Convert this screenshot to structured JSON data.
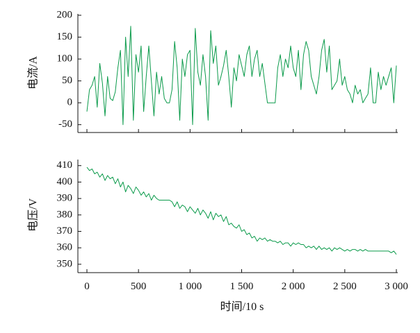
{
  "chart_data": [
    {
      "type": "line",
      "ylabel": "电流/A",
      "xlim": [
        0,
        3000
      ],
      "ylim": [
        -60,
        200
      ],
      "yticks": [
        -50,
        0,
        50,
        100,
        150,
        200
      ],
      "xticks": [
        0,
        500,
        1000,
        1500,
        2000,
        2500,
        3000
      ],
      "grid": false,
      "series": [
        {
          "color": "#0a9a4a",
          "x": [
            0,
            25,
            50,
            75,
            100,
            125,
            150,
            175,
            200,
            225,
            250,
            275,
            300,
            325,
            350,
            375,
            400,
            425,
            450,
            475,
            500,
            525,
            550,
            575,
            600,
            625,
            650,
            675,
            700,
            725,
            750,
            775,
            800,
            825,
            850,
            875,
            900,
            925,
            950,
            975,
            1000,
            1025,
            1050,
            1075,
            1100,
            1125,
            1150,
            1175,
            1200,
            1225,
            1250,
            1275,
            1300,
            1325,
            1350,
            1375,
            1400,
            1425,
            1450,
            1475,
            1500,
            1525,
            1550,
            1575,
            1600,
            1625,
            1650,
            1675,
            1700,
            1725,
            1750,
            1775,
            1800,
            1825,
            1850,
            1875,
            1900,
            1925,
            1950,
            1975,
            2000,
            2025,
            2050,
            2075,
            2100,
            2125,
            2150,
            2175,
            2200,
            2225,
            2250,
            2275,
            2300,
            2325,
            2350,
            2375,
            2400,
            2425,
            2450,
            2475,
            2500,
            2525,
            2550,
            2575,
            2600,
            2625,
            2650,
            2675,
            2700,
            2725,
            2750,
            2775,
            2800,
            2825,
            2850,
            2875,
            2900,
            2925,
            2950,
            2975,
            3000
          ],
          "y": [
            -20,
            30,
            40,
            60,
            -10,
            90,
            45,
            -30,
            60,
            10,
            5,
            25,
            80,
            120,
            -50,
            150,
            60,
            175,
            -40,
            110,
            70,
            130,
            -20,
            60,
            130,
            50,
            -30,
            70,
            20,
            60,
            10,
            0,
            0,
            30,
            140,
            80,
            -40,
            100,
            60,
            110,
            120,
            -50,
            170,
            70,
            40,
            110,
            60,
            -40,
            165,
            90,
            130,
            40,
            60,
            85,
            120,
            60,
            -10,
            80,
            50,
            110,
            85,
            60,
            110,
            130,
            60,
            100,
            120,
            60,
            90,
            45,
            0,
            0,
            0,
            0,
            80,
            110,
            60,
            100,
            80,
            130,
            80,
            60,
            120,
            30,
            110,
            140,
            120,
            60,
            40,
            20,
            60,
            120,
            145,
            70,
            130,
            30,
            40,
            50,
            100,
            40,
            60,
            30,
            20,
            0,
            40,
            20,
            30,
            0,
            10,
            20,
            80,
            0,
            0,
            70,
            30,
            60,
            40,
            60,
            80,
            0,
            85
          ]
        }
      ]
    },
    {
      "type": "line",
      "xlabel": "时间/10 s",
      "ylabel": "电压/V",
      "xlim": [
        0,
        3000
      ],
      "ylim": [
        347,
        412
      ],
      "yticks": [
        350,
        360,
        370,
        380,
        390,
        400,
        410
      ],
      "xticks": [
        0,
        500,
        1000,
        1500,
        2000,
        2500,
        3000
      ],
      "xtick_labels": [
        "0",
        "500",
        "1 000",
        "1 500",
        "2 000",
        "2 500",
        "3 000"
      ],
      "grid": false,
      "series": [
        {
          "color": "#0a9a4a",
          "x": [
            0,
            25,
            50,
            75,
            100,
            125,
            150,
            175,
            200,
            225,
            250,
            275,
            300,
            325,
            350,
            375,
            400,
            425,
            450,
            475,
            500,
            525,
            550,
            575,
            600,
            625,
            650,
            675,
            700,
            725,
            750,
            775,
            800,
            825,
            850,
            875,
            900,
            925,
            950,
            975,
            1000,
            1025,
            1050,
            1075,
            1100,
            1125,
            1150,
            1175,
            1200,
            1225,
            1250,
            1275,
            1300,
            1325,
            1350,
            1375,
            1400,
            1425,
            1450,
            1475,
            1500,
            1525,
            1550,
            1575,
            1600,
            1625,
            1650,
            1675,
            1700,
            1725,
            1750,
            1775,
            1800,
            1825,
            1850,
            1875,
            1900,
            1925,
            1950,
            1975,
            2000,
            2025,
            2050,
            2075,
            2100,
            2125,
            2150,
            2175,
            2200,
            2225,
            2250,
            2275,
            2300,
            2325,
            2350,
            2375,
            2400,
            2425,
            2450,
            2475,
            2500,
            2525,
            2550,
            2575,
            2600,
            2625,
            2650,
            2675,
            2700,
            2725,
            2750,
            2775,
            2800,
            2825,
            2850,
            2875,
            2900,
            2925,
            2950,
            2975,
            3000
          ],
          "y": [
            409,
            407,
            408,
            405,
            406,
            403,
            405,
            401,
            404,
            402,
            403,
            399,
            402,
            397,
            400,
            394,
            398,
            396,
            393,
            397,
            395,
            392,
            394,
            391,
            393,
            389,
            392,
            390,
            389,
            389,
            389,
            389,
            389,
            388,
            385,
            388,
            384,
            386,
            385,
            382,
            385,
            383,
            381,
            384,
            380,
            383,
            381,
            378,
            382,
            377,
            381,
            379,
            380,
            376,
            379,
            374,
            375,
            373,
            372,
            374,
            370,
            371,
            368,
            369,
            366,
            367,
            364,
            366,
            365,
            366,
            364,
            365,
            364,
            364,
            363,
            364,
            362,
            363,
            363,
            361,
            363,
            362,
            363,
            362,
            362,
            360,
            361,
            360,
            361,
            359,
            361,
            359,
            360,
            359,
            360,
            358,
            360,
            359,
            360,
            359,
            358,
            359,
            358,
            359,
            359,
            358,
            359,
            358,
            359,
            358,
            358,
            358,
            358,
            358,
            358,
            358,
            358,
            358,
            357,
            358,
            356
          ]
        }
      ]
    }
  ]
}
